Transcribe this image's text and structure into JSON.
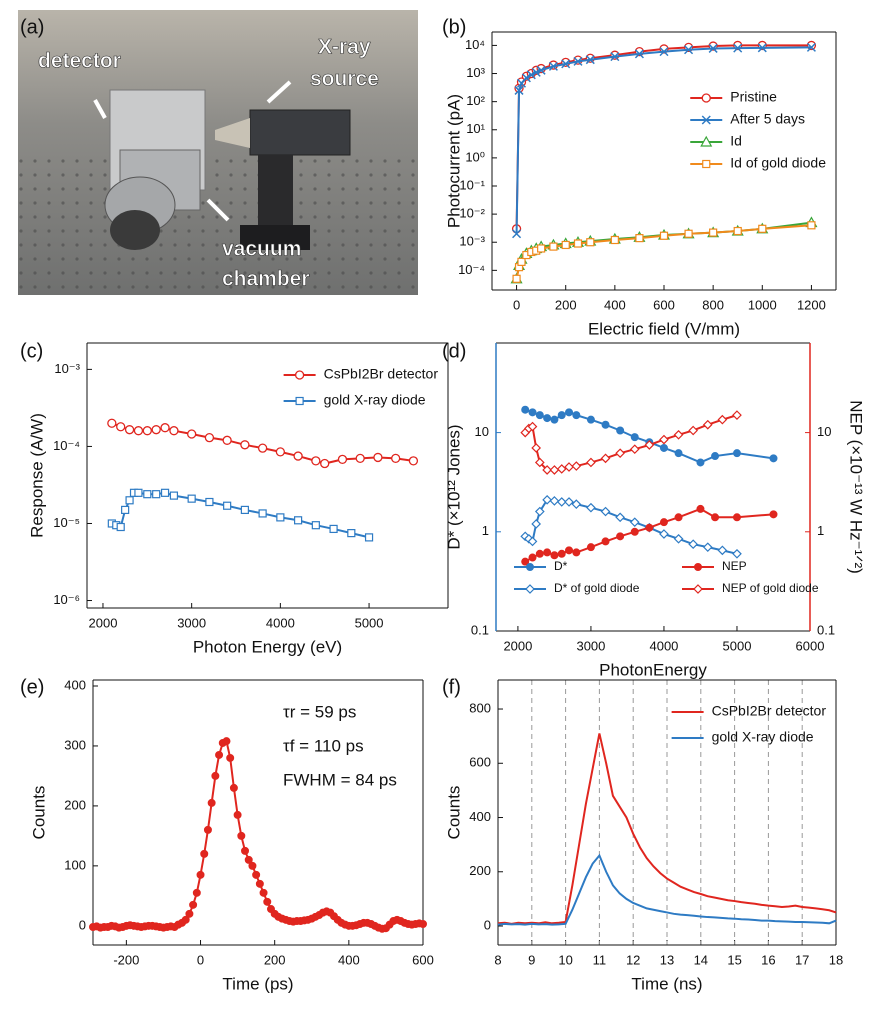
{
  "photo": {
    "label": "(a)",
    "annotations": [
      [
        "detector"
      ],
      [
        "X-ray",
        "source"
      ],
      [
        "vacuum",
        "chamber"
      ]
    ]
  },
  "chart_data": [
    {
      "type": "line",
      "label": "(b)",
      "xlabel": "Electric field (V/mm)",
      "ylabel": "Photocurrent (pA)",
      "xlim": [
        -100,
        1300
      ],
      "xticks": [
        0,
        200,
        400,
        600,
        800,
        1000,
        1200
      ],
      "ylim": [
        2e-05,
        30000
      ],
      "ylog": true,
      "yticks": [
        {
          "value": 0.0001,
          "label": "10⁻⁴"
        },
        {
          "value": 0.001,
          "label": "10⁻³"
        },
        {
          "value": 0.01,
          "label": "10⁻²"
        },
        {
          "value": 0.1,
          "label": "10⁻¹"
        },
        {
          "value": 1,
          "label": "10⁰"
        },
        {
          "value": 10,
          "label": "10¹"
        },
        {
          "value": 100,
          "label": "10²"
        },
        {
          "value": 1000,
          "label": "10³"
        },
        {
          "value": 10000,
          "label": "10⁴"
        }
      ],
      "legend": "center right",
      "x": [
        0,
        10,
        20,
        40,
        60,
        80,
        100,
        150,
        200,
        250,
        300,
        400,
        500,
        600,
        700,
        800,
        900,
        1000,
        1200
      ],
      "series": [
        {
          "name": "Pristine",
          "color": "#e0261f",
          "marker": "circle-open",
          "values": [
            0.003,
            300,
            500,
            800,
            1000,
            1300,
            1500,
            2000,
            2500,
            3000,
            3500,
            4500,
            6000,
            7500,
            8500,
            9500,
            10000,
            10000,
            10000
          ]
        },
        {
          "name": "After 5 days",
          "color": "#2e7bc4",
          "marker": "x",
          "values": [
            0.002,
            250,
            450,
            700,
            900,
            1100,
            1300,
            1800,
            2200,
            2700,
            3100,
            4000,
            5000,
            6000,
            7000,
            7800,
            8000,
            8200,
            8500
          ]
        },
        {
          "name": "Id",
          "color": "#3aa63a",
          "marker": "triangle-open",
          "values": [
            5e-05,
            0.00015,
            0.00025,
            0.0004,
            0.0005,
            0.0006,
            0.0007,
            0.0008,
            0.0009,
            0.001,
            0.0011,
            0.0013,
            0.0015,
            0.0018,
            0.002,
            0.0022,
            0.0025,
            0.003,
            0.005
          ]
        },
        {
          "name": "Id of gold diode",
          "color": "#f08a1c",
          "marker": "square-open",
          "values": [
            5e-05,
            0.00013,
            0.0002,
            0.00035,
            0.00045,
            0.0005,
            0.0006,
            0.0007,
            0.0008,
            0.0009,
            0.001,
            0.0012,
            0.0014,
            0.0017,
            0.002,
            0.0022,
            0.0025,
            0.003,
            0.004
          ]
        }
      ]
    },
    {
      "type": "line",
      "label": "(c)",
      "xlabel": "Photon Energy (eV)",
      "ylabel": "Response (A/W)",
      "xlim": [
        1820,
        5890
      ],
      "xticks": [
        2000,
        3000,
        4000,
        5000
      ],
      "ylim": [
        8e-07,
        0.0022
      ],
      "ylog": true,
      "yticks": [
        {
          "value": 1e-06,
          "label": "10⁻⁶"
        },
        {
          "value": 1e-05,
          "label": "10⁻⁵"
        },
        {
          "value": 0.0001,
          "label": "10⁻⁴"
        },
        {
          "value": 0.001,
          "label": "10⁻³"
        }
      ],
      "legend": "upper right",
      "series": [
        {
          "name": "CsPbI2Br detector",
          "color": "#e0261f",
          "marker": "circle-open",
          "x": [
            2100,
            2200,
            2300,
            2400,
            2500,
            2600,
            2700,
            2800,
            3000,
            3200,
            3400,
            3600,
            3800,
            4000,
            4200,
            4400,
            4500,
            4700,
            4900,
            5100,
            5300,
            5500
          ],
          "values": [
            0.0002,
            0.00018,
            0.000165,
            0.00016,
            0.00016,
            0.000165,
            0.000175,
            0.00016,
            0.000145,
            0.00013,
            0.00012,
            0.000105,
            9.5e-05,
            8.5e-05,
            7.5e-05,
            6.5e-05,
            6e-05,
            6.8e-05,
            7e-05,
            7.2e-05,
            7e-05,
            6.5e-05
          ]
        },
        {
          "name": "gold X-ray diode",
          "color": "#2e7bc4",
          "marker": "square-open",
          "x": [
            2100,
            2150,
            2200,
            2250,
            2300,
            2350,
            2400,
            2500,
            2600,
            2700,
            2800,
            3000,
            3200,
            3400,
            3600,
            3800,
            4000,
            4200,
            4400,
            4600,
            4800,
            5000
          ],
          "values": [
            1e-05,
            9.5e-06,
            9e-06,
            1.5e-05,
            2e-05,
            2.5e-05,
            2.5e-05,
            2.4e-05,
            2.4e-05,
            2.5e-05,
            2.3e-05,
            2.1e-05,
            1.9e-05,
            1.7e-05,
            1.5e-05,
            1.35e-05,
            1.2e-05,
            1.1e-05,
            9.5e-06,
            8.5e-06,
            7.5e-06,
            6.6e-06
          ]
        }
      ]
    },
    {
      "type": "line",
      "label": "(d)",
      "xlabel": "PhotonEnergy",
      "ylabel": "D* (×10¹² Jones)",
      "ylabel_color": "#2e7bc4",
      "y2label": "NEP (×10⁻¹³ W Hz⁻¹ᐟ²)",
      "y2label_color": "#e0261f",
      "xlim": [
        1700,
        6000
      ],
      "xticks": [
        2000,
        3000,
        4000,
        5000,
        6000
      ],
      "ylim": [
        0.1,
        80
      ],
      "ylog": true,
      "yticks": [
        0.1,
        1,
        10
      ],
      "y2lim": [
        0.1,
        80
      ],
      "y2log": true,
      "y2ticks": [
        0.1,
        1,
        10
      ],
      "legend": "lower center",
      "series": [
        {
          "name": "D*",
          "color": "#2e7bc4",
          "marker": "circle-filled",
          "x": [
            2100,
            2200,
            2300,
            2400,
            2500,
            2600,
            2700,
            2800,
            3000,
            3200,
            3400,
            3600,
            3800,
            4000,
            4200,
            4500,
            4700,
            5000,
            5500
          ],
          "values": [
            17,
            16,
            15,
            14,
            13.5,
            15,
            16,
            15,
            13.5,
            12,
            10.5,
            9,
            8,
            7,
            6.2,
            5,
            5.8,
            6.2,
            5.5
          ]
        },
        {
          "name": "D* of gold diode",
          "color": "#2e7bc4",
          "marker": "diamond-open",
          "x": [
            2100,
            2150,
            2200,
            2250,
            2300,
            2400,
            2500,
            2600,
            2700,
            2800,
            3000,
            3200,
            3400,
            3600,
            3800,
            4000,
            4200,
            4400,
            4600,
            4800,
            5000
          ],
          "values": [
            0.9,
            0.85,
            0.8,
            1.2,
            1.6,
            2.1,
            2.05,
            2.0,
            2.0,
            1.9,
            1.75,
            1.6,
            1.4,
            1.25,
            1.1,
            0.95,
            0.85,
            0.75,
            0.7,
            0.65,
            0.6
          ]
        },
        {
          "name": "NEP",
          "color": "#e0261f",
          "marker": "circle-filled",
          "axis": "y2",
          "x": [
            2100,
            2200,
            2300,
            2400,
            2500,
            2600,
            2700,
            2800,
            3000,
            3200,
            3400,
            3600,
            3800,
            4000,
            4200,
            4500,
            4700,
            5000,
            5500
          ],
          "values": [
            0.5,
            0.55,
            0.6,
            0.62,
            0.58,
            0.6,
            0.65,
            0.62,
            0.7,
            0.8,
            0.9,
            1.0,
            1.1,
            1.25,
            1.4,
            1.7,
            1.4,
            1.4,
            1.5
          ]
        },
        {
          "name": "NEP of gold diode",
          "color": "#e0261f",
          "marker": "diamond-open",
          "axis": "y2",
          "x": [
            2100,
            2150,
            2200,
            2250,
            2300,
            2400,
            2500,
            2600,
            2700,
            2800,
            3000,
            3200,
            3400,
            3600,
            3800,
            4000,
            4200,
            4400,
            4600,
            4800,
            5000
          ],
          "values": [
            10,
            11,
            11.5,
            7,
            5,
            4.2,
            4.2,
            4.3,
            4.5,
            4.6,
            5,
            5.5,
            6.2,
            6.8,
            7.5,
            8.5,
            9.5,
            10.5,
            12,
            13.5,
            15
          ]
        }
      ]
    },
    {
      "type": "line",
      "label": "(e)",
      "xlabel": "Time (ps)",
      "ylabel": "Counts",
      "xlim": [
        -290,
        600
      ],
      "xticks": [
        -200,
        0,
        200,
        400,
        600
      ],
      "ylim": [
        -32,
        410
      ],
      "yticks": [
        0,
        100,
        200,
        300,
        400
      ],
      "annotations": [
        "τr = 59 ps",
        "τf = 110 ps",
        "FWHM = 84 ps"
      ],
      "x": [
        -290,
        -280,
        -270,
        -260,
        -250,
        -240,
        -230,
        -220,
        -210,
        -200,
        -190,
        -180,
        -170,
        -160,
        -150,
        -140,
        -130,
        -120,
        -110,
        -100,
        -90,
        -80,
        -70,
        -60,
        -50,
        -40,
        -30,
        -20,
        -10,
        0,
        10,
        20,
        30,
        40,
        50,
        60,
        70,
        80,
        90,
        100,
        110,
        120,
        130,
        140,
        150,
        160,
        170,
        180,
        190,
        200,
        210,
        220,
        230,
        240,
        250,
        260,
        270,
        280,
        290,
        300,
        310,
        320,
        330,
        340,
        350,
        360,
        370,
        380,
        390,
        400,
        410,
        420,
        430,
        440,
        450,
        460,
        470,
        480,
        490,
        500,
        510,
        520,
        530,
        540,
        550,
        560,
        570,
        580,
        590,
        600
      ],
      "series": [
        {
          "color": "#e0261f",
          "marker": "circle-filled",
          "values": [
            -2,
            -1,
            -3,
            -2,
            -2,
            0,
            -1,
            -3,
            -2,
            0,
            1,
            0,
            -1,
            -2,
            -1,
            0,
            0,
            -1,
            -2,
            -3,
            -2,
            -1,
            -2,
            2,
            5,
            10,
            20,
            35,
            55,
            85,
            120,
            160,
            205,
            250,
            285,
            305,
            308,
            280,
            230,
            185,
            150,
            125,
            110,
            100,
            85,
            70,
            55,
            40,
            28,
            20,
            15,
            12,
            10,
            8,
            7,
            8,
            8,
            9,
            10,
            12,
            15,
            18,
            22,
            24,
            22,
            16,
            10,
            5,
            2,
            0,
            0,
            1,
            3,
            5,
            5,
            3,
            0,
            -3,
            -5,
            -4,
            2,
            8,
            10,
            8,
            5,
            3,
            2,
            3,
            4,
            3
          ]
        }
      ]
    },
    {
      "type": "line",
      "label": "(f)",
      "xlabel": "Time (ns)",
      "ylabel": "Counts",
      "xlim": [
        8,
        18
      ],
      "xticks": [
        8,
        9,
        10,
        11,
        12,
        13,
        14,
        15,
        16,
        17,
        18
      ],
      "xgrid": true,
      "ylim": [
        -70,
        907
      ],
      "yticks": [
        0,
        200,
        400,
        600,
        800
      ],
      "legend": "upper right",
      "x": [
        8,
        8.2,
        8.4,
        8.6,
        8.8,
        9,
        9.2,
        9.4,
        9.6,
        9.8,
        10,
        10.2,
        10.4,
        10.6,
        10.8,
        11,
        11.2,
        11.4,
        11.6,
        11.8,
        12,
        12.2,
        12.4,
        12.6,
        12.8,
        13,
        13.2,
        13.4,
        13.6,
        13.8,
        14,
        14.2,
        14.4,
        14.6,
        14.8,
        15,
        15.2,
        15.4,
        15.6,
        15.8,
        16,
        16.2,
        16.4,
        16.6,
        16.8,
        17,
        17.2,
        17.4,
        17.6,
        17.8,
        18
      ],
      "series": [
        {
          "name": "CsPbI2Br detector",
          "color": "#e0261f",
          "marker": "none",
          "values": [
            10,
            12,
            8,
            12,
            10,
            12,
            10,
            14,
            10,
            12,
            15,
            150,
            300,
            450,
            580,
            710,
            600,
            480,
            440,
            400,
            340,
            290,
            250,
            220,
            195,
            175,
            160,
            145,
            135,
            125,
            118,
            110,
            105,
            100,
            95,
            92,
            88,
            85,
            82,
            78,
            75,
            73,
            70,
            72,
            75,
            70,
            68,
            65,
            62,
            58,
            50
          ]
        },
        {
          "name": "gold X-ray diode",
          "color": "#2e7bc4",
          "marker": "none",
          "values": [
            5,
            8,
            6,
            7,
            5,
            8,
            6,
            7,
            5,
            6,
            8,
            60,
            120,
            180,
            230,
            260,
            200,
            150,
            120,
            100,
            85,
            75,
            65,
            60,
            55,
            50,
            45,
            42,
            40,
            38,
            35,
            33,
            32,
            30,
            28,
            27,
            25,
            24,
            22,
            20,
            20,
            18,
            17,
            16,
            15,
            15,
            14,
            13,
            12,
            10,
            20
          ]
        }
      ]
    }
  ]
}
